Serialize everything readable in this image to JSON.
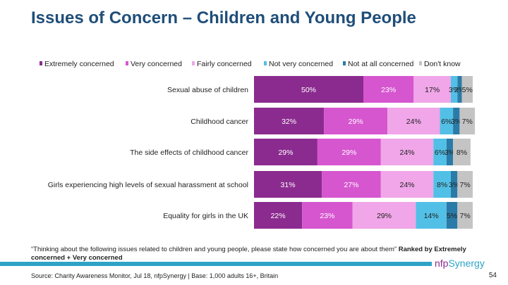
{
  "title": "Issues of Concern – Children and Young People",
  "note_prefix": "“Thinking about the following issues related to children and young people, please state how concerned you are about them” ",
  "note_bold": "Ranked by Extremely concerned + Very concerned",
  "source": "Source: Charity Awareness Monitor, Jul 18, nfpSynergy | Base: 1,000 adults 16+, Britain",
  "page_number": "54",
  "logo": {
    "prefix": "nfp",
    "suffix": "Synergy"
  },
  "chart_data": {
    "type": "bar",
    "orientation": "horizontal",
    "stacked": true,
    "categories": [
      "Sexual abuse of children",
      "Childhood cancer",
      "The side effects of childhood cancer",
      "Girls experiencing high levels of sexual harassment at school",
      "Equality for girls in the UK"
    ],
    "series": [
      {
        "name": "Extremely concerned",
        "color": "#8b2b8f",
        "values": [
          50,
          32,
          29,
          31,
          22
        ]
      },
      {
        "name": "Very concerned",
        "color": "#d656cf",
        "values": [
          23,
          29,
          29,
          27,
          23
        ]
      },
      {
        "name": "Fairly concerned",
        "color": "#f0a6e8",
        "values": [
          17,
          24,
          24,
          24,
          29
        ]
      },
      {
        "name": "Not very concerned",
        "color": "#52c0e6",
        "values": [
          3,
          6,
          6,
          8,
          14
        ]
      },
      {
        "name": "Not at all concerned",
        "color": "#2b7ba8",
        "values": [
          2,
          3,
          3,
          3,
          5
        ]
      },
      {
        "name": "Don't know",
        "color": "#c4c4c4",
        "values": [
          5,
          7,
          8,
          7,
          7
        ]
      }
    ],
    "data_labels": [
      [
        "50%",
        "23%",
        "17%",
        "3%",
        "2%",
        "5%"
      ],
      [
        "32%",
        "29%",
        "24%",
        "6%",
        "3%",
        "7%"
      ],
      [
        "29%",
        "29%",
        "24%",
        "6%",
        "3%",
        "8%"
      ],
      [
        "31%",
        "27%",
        "24%",
        "8%",
        "3%",
        "7%"
      ],
      [
        "22%",
        "23%",
        "29%",
        "14%",
        "5%",
        "7%"
      ]
    ],
    "legend_position": "top"
  }
}
